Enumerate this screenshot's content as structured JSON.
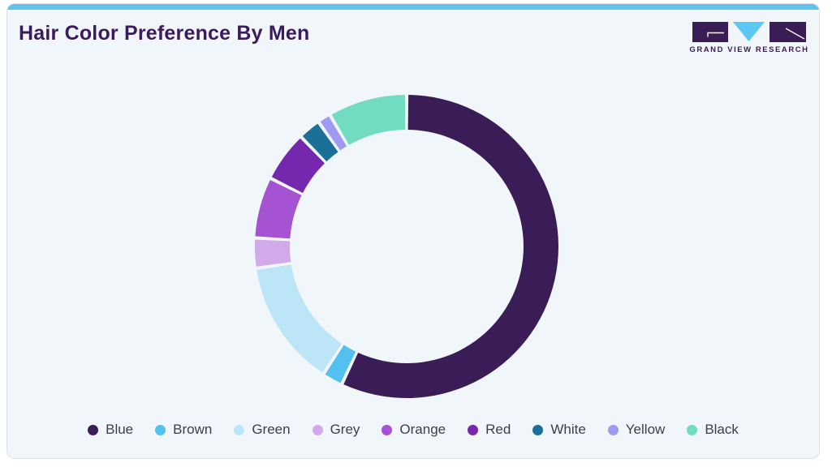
{
  "page": {
    "card_bg": "#F0F6FA",
    "accent_bar_color": "#5FC3EE",
    "card_border_color": "#D9E2E8"
  },
  "header": {
    "title": "Hair Color Preference By Men",
    "title_color": "#3C1A5E"
  },
  "logo": {
    "text": "GRAND VIEW RESEARCH",
    "dark_color": "#3A1C56",
    "blue_color": "#5BC8F2"
  },
  "chart_data": {
    "type": "pie",
    "subtype": "donut",
    "title": "Hair Color Preference By Men",
    "categories": [
      "Blue",
      "Brown",
      "Green",
      "Grey",
      "Orange",
      "Red",
      "White",
      "Yellow",
      "Black"
    ],
    "values": [
      57.0,
      2.2,
      13.5,
      3.2,
      6.5,
      5.4,
      2.4,
      1.4,
      8.4
    ],
    "unit": "percent",
    "colors": [
      "#3A1C56",
      "#53C1F0",
      "#BCE5F8",
      "#D2A9EB",
      "#A553D3",
      "#7527AE",
      "#1A7096",
      "#9E99F2",
      "#72DCC3"
    ],
    "start_angle_deg": 0,
    "direction": "clockwise",
    "inner_radius_ratio": 0.77,
    "segment_gap_deg": 1.3,
    "legend_position": "bottom",
    "data_labels": false
  }
}
